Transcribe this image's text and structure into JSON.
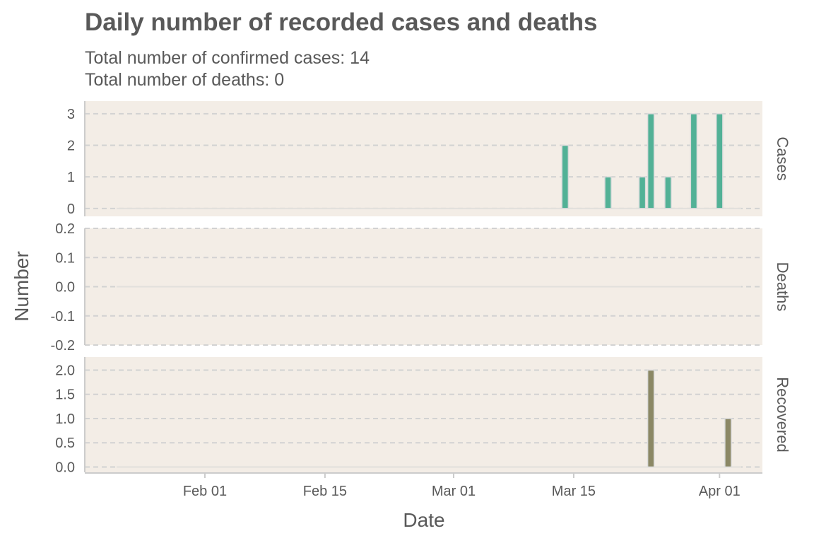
{
  "chart_data": {
    "type": "bar",
    "title": "Daily number of recorded cases and deaths",
    "subtitle": [
      "Total number of confirmed cases: 14",
      "Total number of deaths: 0"
    ],
    "xlabel": "Date",
    "ylabel": "Number",
    "x_range": [
      "2020-01-18",
      "2020-04-06"
    ],
    "x_ticks": [
      {
        "date": "2020-02-01",
        "label": "Feb 01"
      },
      {
        "date": "2020-02-15",
        "label": "Feb 15"
      },
      {
        "date": "2020-03-01",
        "label": "Mar 01"
      },
      {
        "date": "2020-03-15",
        "label": "Mar 15"
      },
      {
        "date": "2020-04-01",
        "label": "Apr 01"
      }
    ],
    "grid": true,
    "background_color": "#f3ede6",
    "panels": [
      {
        "name": "Cases",
        "color": "#52b196",
        "ylim": [
          -0.25,
          3.4
        ],
        "y_ticks": [
          0,
          1,
          2,
          3
        ],
        "y_tick_labels": [
          "0",
          "1",
          "2",
          "3"
        ],
        "points": [
          {
            "x": "2020-03-14",
            "y": 2
          },
          {
            "x": "2020-03-19",
            "y": 1
          },
          {
            "x": "2020-03-23",
            "y": 1
          },
          {
            "x": "2020-03-24",
            "y": 3
          },
          {
            "x": "2020-03-26",
            "y": 1
          },
          {
            "x": "2020-03-29",
            "y": 3
          },
          {
            "x": "2020-04-01",
            "y": 3
          }
        ]
      },
      {
        "name": "Deaths",
        "color": "#555555",
        "ylim": [
          -0.2,
          0.2
        ],
        "y_ticks": [
          -0.2,
          -0.1,
          0.0,
          0.1,
          0.2
        ],
        "y_tick_labels": [
          "-0.2",
          "-0.1",
          "0.0",
          "0.1",
          "0.2"
        ],
        "points": []
      },
      {
        "name": "Recovered",
        "color": "#8b8865",
        "ylim": [
          -0.11,
          2.27
        ],
        "y_ticks": [
          0,
          0.5,
          1.0,
          1.5,
          2.0
        ],
        "y_tick_labels": [
          "0.0",
          "0.5",
          "1.0",
          "1.5",
          "2.0"
        ],
        "points": [
          {
            "x": "2020-03-24",
            "y": 2
          },
          {
            "x": "2020-04-02",
            "y": 1
          }
        ]
      }
    ]
  }
}
